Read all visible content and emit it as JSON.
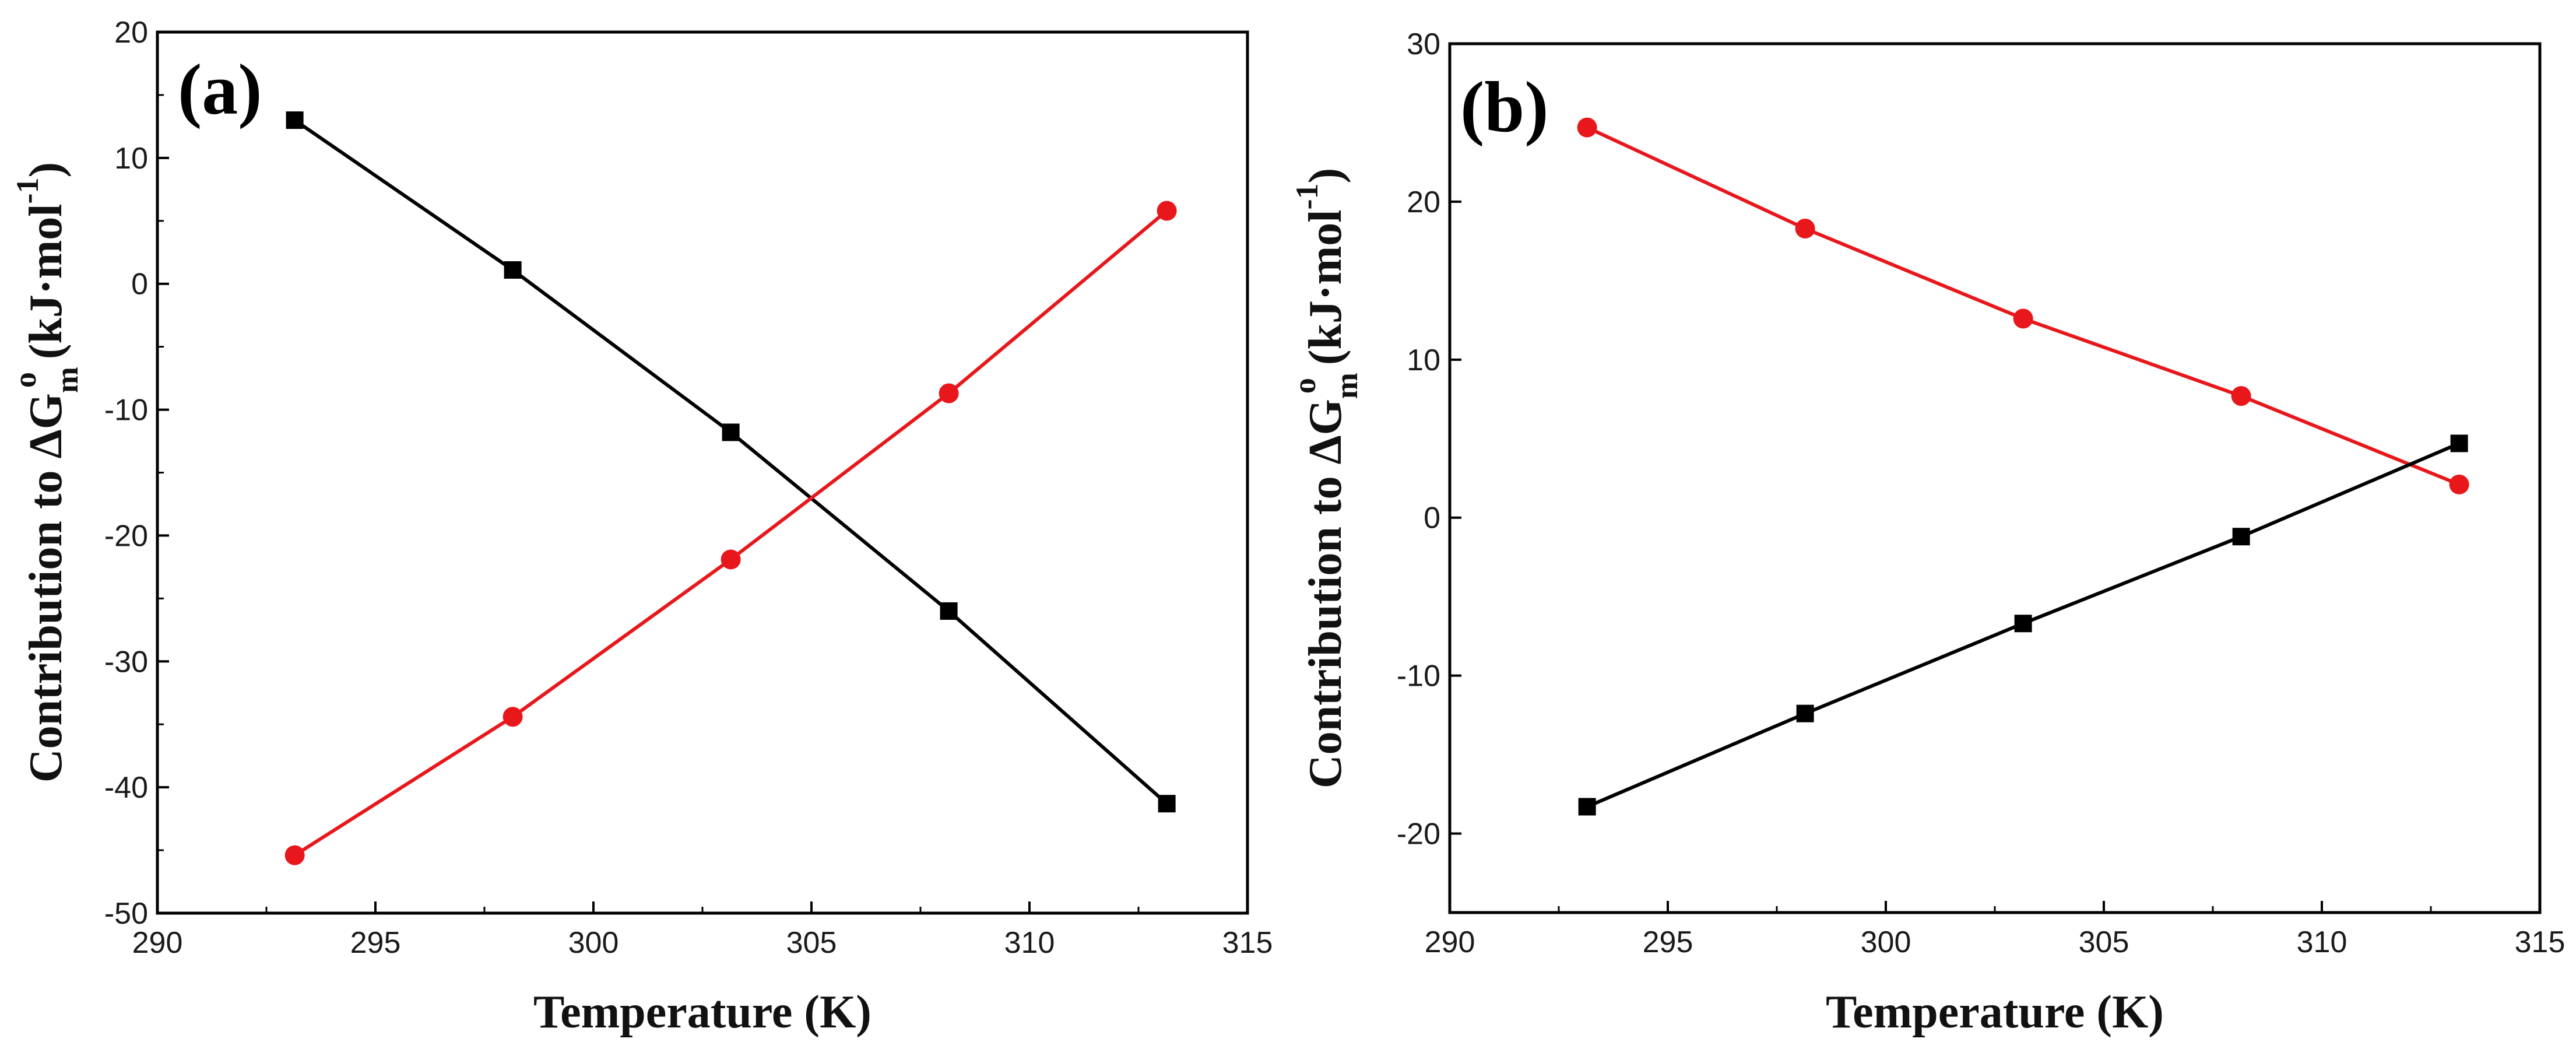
{
  "colors": {
    "black_series": "#000000",
    "red_series": "#e8171b"
  },
  "chart_data": [
    {
      "panel": "(a)",
      "type": "line",
      "xlabel": "Temperature (K)",
      "ylabel_prefix": "Contribution to ΔG",
      "ylabel_sub": "m",
      "ylabel_sup": "o",
      "ylabel_units": "(kJ·mol",
      "ylabel_units_sup": "-1",
      "ylabel_units_end": ")",
      "xlim": [
        290,
        315
      ],
      "ylim": [
        -50,
        20
      ],
      "xticks": [
        290,
        295,
        300,
        305,
        310,
        315
      ],
      "yticks": [
        -50,
        -40,
        -30,
        -20,
        -10,
        0,
        10,
        20
      ],
      "x": [
        293.15,
        298.15,
        303.15,
        308.15,
        313.15
      ],
      "series": [
        {
          "name": "black",
          "marker": "square",
          "color": "#000000",
          "values": [
            13,
            1.1,
            -11.8,
            -26.0,
            -41.3
          ]
        },
        {
          "name": "red",
          "marker": "circle",
          "color": "#e8171b",
          "values": [
            -45.4,
            -34.4,
            -21.9,
            -8.7,
            5.8
          ]
        }
      ]
    },
    {
      "panel": "(b)",
      "type": "line",
      "xlabel": "Temperature (K)",
      "ylabel_prefix": "Contribution to ΔG",
      "ylabel_sub": "m",
      "ylabel_sup": "o",
      "ylabel_units": "(kJ·mol",
      "ylabel_units_sup": "-1",
      "ylabel_units_end": ")",
      "xlim": [
        290,
        315
      ],
      "ylim": [
        -25,
        30
      ],
      "xticks": [
        290,
        295,
        300,
        305,
        310,
        315
      ],
      "yticks": [
        -20,
        -10,
        0,
        10,
        20,
        30
      ],
      "x": [
        293.15,
        298.15,
        303.15,
        308.15,
        313.15
      ],
      "series": [
        {
          "name": "red",
          "marker": "circle",
          "color": "#e8171b",
          "values": [
            24.7,
            18.3,
            12.6,
            7.7,
            2.1
          ]
        },
        {
          "name": "black",
          "marker": "square",
          "color": "#000000",
          "values": [
            -18.3,
            -12.4,
            -6.7,
            -1.2,
            4.7
          ]
        }
      ]
    }
  ]
}
